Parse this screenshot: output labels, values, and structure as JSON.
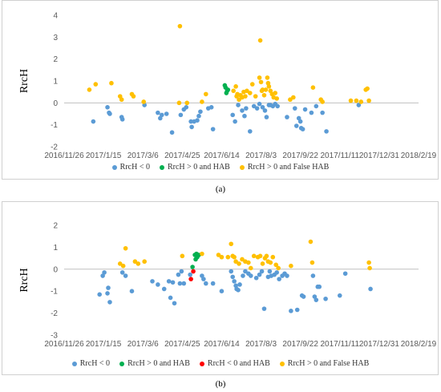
{
  "subfigure_labels": [
    "(a)",
    "(b)"
  ],
  "colors": {
    "rrch_neg": "#5b9bd5",
    "rrch_pos_hab": "#00b050",
    "rrch_neg_hab": "#ff0000",
    "rrch_pos_false_hab": "#ffc000",
    "axis": "#bfbfbf"
  },
  "chart_data": [
    {
      "type": "scatter",
      "subfigure": "(a)",
      "xlabel": "",
      "ylabel": "RrcH",
      "ylim": [
        -2,
        4
      ],
      "yticks": [
        -2,
        -1,
        0,
        1,
        2,
        3,
        4
      ],
      "x_tick_labels": [
        "2016/11/26",
        "2017/1/15",
        "2017/3/6",
        "2017/4/25",
        "2017/6/14",
        "2017/8/3",
        "2017/9/22",
        "2017/11/11",
        "2017/12/31",
        "2018/2/19"
      ],
      "xlim": [
        "2016/11/26",
        "2018/2/19"
      ],
      "grid": false,
      "legend_position": "bottom",
      "series": [
        {
          "name": "RrcH < 0",
          "color_key": "rrch_neg",
          "points": [
            [
              "2017-01-02",
              -0.85
            ],
            [
              "2017-01-20",
              -0.2
            ],
            [
              "2017-01-22",
              -0.45
            ],
            [
              "2017-01-23",
              -0.5
            ],
            [
              "2017-02-07",
              -0.65
            ],
            [
              "2017-02-08",
              -0.75
            ],
            [
              "2017-03-08",
              -0.1
            ],
            [
              "2017-03-25",
              -0.45
            ],
            [
              "2017-03-28",
              -0.7
            ],
            [
              "2017-03-30",
              -0.55
            ],
            [
              "2017-04-05",
              -0.5
            ],
            [
              "2017-04-12",
              -1.35
            ],
            [
              "2017-04-23",
              -0.55
            ],
            [
              "2017-04-27",
              -0.3
            ],
            [
              "2017-04-30",
              -0.2
            ],
            [
              "2017-05-06",
              -0.85
            ],
            [
              "2017-05-07",
              -1.1
            ],
            [
              "2017-05-10",
              -0.85
            ],
            [
              "2017-05-14",
              -0.8
            ],
            [
              "2017-05-16",
              -0.6
            ],
            [
              "2017-05-18",
              -0.4
            ],
            [
              "2017-05-28",
              -0.25
            ],
            [
              "2017-06-01",
              -0.2
            ],
            [
              "2017-06-03",
              -1.2
            ],
            [
              "2017-06-28",
              -0.55
            ],
            [
              "2017-07-01",
              -0.85
            ],
            [
              "2017-07-05",
              -0.1
            ],
            [
              "2017-07-10",
              -0.35
            ],
            [
              "2017-07-13",
              -0.6
            ],
            [
              "2017-07-15",
              -0.25
            ],
            [
              "2017-07-20",
              -1.3
            ],
            [
              "2017-07-25",
              -0.15
            ],
            [
              "2017-07-29",
              -0.25
            ],
            [
              "2017-08-01",
              -0.05
            ],
            [
              "2017-08-05",
              -0.2
            ],
            [
              "2017-08-08",
              -0.35
            ],
            [
              "2017-08-10",
              -0.65
            ],
            [
              "2017-08-13",
              -0.1
            ],
            [
              "2017-08-15",
              -0.1
            ],
            [
              "2017-08-18",
              -0.15
            ],
            [
              "2017-08-21",
              -0.05
            ],
            [
              "2017-08-24",
              -0.15
            ],
            [
              "2017-09-05",
              -0.65
            ],
            [
              "2017-09-15",
              -0.25
            ],
            [
              "2017-09-17",
              -1.05
            ],
            [
              "2017-09-20",
              -0.7
            ],
            [
              "2017-09-22",
              -0.85
            ],
            [
              "2017-09-23",
              -1.15
            ],
            [
              "2017-09-25",
              -1.2
            ],
            [
              "2017-09-28",
              -0.3
            ],
            [
              "2017-10-06",
              -0.45
            ],
            [
              "2017-10-12",
              -0.15
            ],
            [
              "2017-10-20",
              -0.45
            ],
            [
              "2017-10-25",
              -1.3
            ],
            [
              "2017-12-05",
              -0.1
            ]
          ]
        },
        {
          "name": "RrcH > 0 and HAB",
          "color_key": "rrch_pos_hab",
          "points": [
            [
              "2017-06-18",
              0.8
            ],
            [
              "2017-06-19",
              0.7
            ],
            [
              "2017-06-20",
              0.45
            ],
            [
              "2017-06-21",
              0.55
            ],
            [
              "2017-06-22",
              0.6
            ]
          ]
        },
        {
          "name": "RrcH > 0 and False HAB",
          "color_key": "rrch_pos_false_hab",
          "points": [
            [
              "2016-12-28",
              0.6
            ],
            [
              "2017-01-05",
              0.85
            ],
            [
              "2017-01-25",
              0.9
            ],
            [
              "2017-02-05",
              0.3
            ],
            [
              "2017-02-07",
              0.15
            ],
            [
              "2017-02-20",
              0.4
            ],
            [
              "2017-02-22",
              0.3
            ],
            [
              "2017-03-07",
              0.05
            ],
            [
              "2017-04-22",
              3.5
            ],
            [
              "2017-04-21",
              0.0
            ],
            [
              "2017-05-01",
              0.0
            ],
            [
              "2017-05-20",
              0.05
            ],
            [
              "2017-05-25",
              0.4
            ],
            [
              "2017-06-29",
              0.55
            ],
            [
              "2017-07-02",
              0.75
            ],
            [
              "2017-07-03",
              0.3
            ],
            [
              "2017-07-04",
              0.4
            ],
            [
              "2017-07-06",
              0.15
            ],
            [
              "2017-07-08",
              0.35
            ],
            [
              "2017-07-10",
              0.25
            ],
            [
              "2017-07-12",
              0.5
            ],
            [
              "2017-07-14",
              0.3
            ],
            [
              "2017-07-16",
              0.55
            ],
            [
              "2017-07-20",
              0.45
            ],
            [
              "2017-07-23",
              0.85
            ],
            [
              "2017-07-27",
              0.3
            ],
            [
              "2017-08-01",
              1.15
            ],
            [
              "2017-08-02",
              2.85
            ],
            [
              "2017-08-03",
              0.95
            ],
            [
              "2017-08-04",
              0.55
            ],
            [
              "2017-08-05",
              0.6
            ],
            [
              "2017-08-07",
              0.35
            ],
            [
              "2017-08-09",
              0.6
            ],
            [
              "2017-08-11",
              1.15
            ],
            [
              "2017-08-12",
              0.9
            ],
            [
              "2017-08-13",
              0.75
            ],
            [
              "2017-08-15",
              0.55
            ],
            [
              "2017-08-17",
              0.4
            ],
            [
              "2017-08-19",
              0.25
            ],
            [
              "2017-08-21",
              0.45
            ],
            [
              "2017-08-23",
              0.2
            ],
            [
              "2017-09-09",
              0.15
            ],
            [
              "2017-09-13",
              0.25
            ],
            [
              "2017-10-08",
              0.7
            ],
            [
              "2017-10-18",
              0.15
            ],
            [
              "2017-10-20",
              0.05
            ],
            [
              "2017-11-25",
              0.1
            ],
            [
              "2017-12-02",
              0.1
            ],
            [
              "2017-12-08",
              0.05
            ],
            [
              "2017-12-14",
              0.6
            ],
            [
              "2017-12-16",
              0.65
            ],
            [
              "2017-12-18",
              0.1
            ]
          ]
        }
      ]
    },
    {
      "type": "scatter",
      "subfigure": "(b)",
      "xlabel": "",
      "ylabel": "RrcH",
      "ylim": [
        -3,
        2
      ],
      "yticks": [
        -3,
        -2,
        -1,
        0,
        1,
        2
      ],
      "x_tick_labels": [
        "2016/11/26",
        "2017/1/15",
        "2017/3/6",
        "2017/4/25",
        "2017/6/14",
        "2017/8/3",
        "2017/9/22",
        "2017/11/11",
        "2017/12/31",
        "2018/2/19"
      ],
      "xlim": [
        "2016/11/26",
        "2018/2/19"
      ],
      "grid": false,
      "legend_position": "bottom",
      "series": [
        {
          "name": "RrcH < 0",
          "color_key": "rrch_neg",
          "points": [
            [
              "2017-01-10",
              -1.15
            ],
            [
              "2017-01-14",
              -0.3
            ],
            [
              "2017-01-16",
              -0.15
            ],
            [
              "2017-01-20",
              -1.1
            ],
            [
              "2017-01-21",
              -0.85
            ],
            [
              "2017-01-23",
              -1.5
            ],
            [
              "2017-02-08",
              -0.15
            ],
            [
              "2017-02-12",
              -0.3
            ],
            [
              "2017-02-20",
              -1.0
            ],
            [
              "2017-03-18",
              -0.55
            ],
            [
              "2017-03-25",
              -0.7
            ],
            [
              "2017-04-02",
              -0.9
            ],
            [
              "2017-04-08",
              -0.55
            ],
            [
              "2017-04-10",
              -1.3
            ],
            [
              "2017-04-13",
              -0.6
            ],
            [
              "2017-04-15",
              -1.55
            ],
            [
              "2017-04-20",
              -0.25
            ],
            [
              "2017-04-22",
              -0.65
            ],
            [
              "2017-04-24",
              -0.1
            ],
            [
              "2017-04-27",
              -0.65
            ],
            [
              "2017-05-05",
              -0.25
            ],
            [
              "2017-05-20",
              -0.3
            ],
            [
              "2017-05-22",
              -0.45
            ],
            [
              "2017-05-25",
              -0.65
            ],
            [
              "2017-06-03",
              -0.65
            ],
            [
              "2017-06-14",
              -1.0
            ],
            [
              "2017-06-26",
              -0.1
            ],
            [
              "2017-06-28",
              -0.35
            ],
            [
              "2017-06-30",
              -0.55
            ],
            [
              "2017-07-02",
              -0.75
            ],
            [
              "2017-07-03",
              -0.9
            ],
            [
              "2017-07-05",
              -0.95
            ],
            [
              "2017-07-07",
              -0.7
            ],
            [
              "2017-07-11",
              -0.3
            ],
            [
              "2017-07-14",
              -0.1
            ],
            [
              "2017-07-18",
              -0.2
            ],
            [
              "2017-07-21",
              -0.3
            ],
            [
              "2017-07-28",
              -0.4
            ],
            [
              "2017-08-01",
              -0.25
            ],
            [
              "2017-08-04",
              -0.1
            ],
            [
              "2017-08-07",
              -1.8
            ],
            [
              "2017-08-12",
              -0.35
            ],
            [
              "2017-08-14",
              -0.1
            ],
            [
              "2017-08-16",
              -0.3
            ],
            [
              "2017-08-20",
              -0.25
            ],
            [
              "2017-08-23",
              -0.15
            ],
            [
              "2017-08-26",
              -0.45
            ],
            [
              "2017-08-30",
              -0.3
            ],
            [
              "2017-09-02",
              -0.2
            ],
            [
              "2017-09-05",
              -0.3
            ],
            [
              "2017-09-10",
              -1.9
            ],
            [
              "2017-09-18",
              -1.85
            ],
            [
              "2017-09-24",
              -1.2
            ],
            [
              "2017-09-26",
              -1.25
            ],
            [
              "2017-10-08",
              -0.3
            ],
            [
              "2017-10-10",
              -1.25
            ],
            [
              "2017-10-12",
              -1.4
            ],
            [
              "2017-10-14",
              -0.8
            ],
            [
              "2017-10-16",
              -0.8
            ],
            [
              "2017-10-24",
              -1.35
            ],
            [
              "2017-11-11",
              -1.2
            ],
            [
              "2017-11-18",
              -0.2
            ],
            [
              "2017-12-20",
              -0.9
            ]
          ]
        },
        {
          "name": "RrcH > 0 and HAB",
          "color_key": "rrch_pos_hab",
          "points": [
            [
              "2017-05-08",
              0.1
            ],
            [
              "2017-05-11",
              0.65
            ],
            [
              "2017-05-12",
              0.45
            ],
            [
              "2017-05-13",
              0.7
            ],
            [
              "2017-05-14",
              0.55
            ],
            [
              "2017-05-15",
              0.65
            ],
            [
              "2017-05-16",
              0.65
            ]
          ]
        },
        {
          "name": "RrcH < 0 and HAB",
          "color_key": "rrch_neg_hab",
          "points": [
            [
              "2017-05-06",
              -0.45
            ],
            [
              "2017-05-09",
              -0.1
            ]
          ]
        },
        {
          "name": "RrcH > 0 and False HAB",
          "color_key": "rrch_pos_false_hab",
          "points": [
            [
              "2017-02-05",
              0.25
            ],
            [
              "2017-02-09",
              0.15
            ],
            [
              "2017-02-12",
              0.95
            ],
            [
              "2017-02-24",
              0.35
            ],
            [
              "2017-02-28",
              0.25
            ],
            [
              "2017-03-08",
              0.35
            ],
            [
              "2017-04-25",
              0.6
            ],
            [
              "2017-05-20",
              0.7
            ],
            [
              "2017-06-10",
              0.65
            ],
            [
              "2017-06-14",
              0.55
            ],
            [
              "2017-06-22",
              0.55
            ],
            [
              "2017-06-26",
              1.15
            ],
            [
              "2017-06-28",
              0.6
            ],
            [
              "2017-06-30",
              0.55
            ],
            [
              "2017-07-02",
              0.35
            ],
            [
              "2017-07-06",
              0.25
            ],
            [
              "2017-07-10",
              0.45
            ],
            [
              "2017-07-14",
              0.35
            ],
            [
              "2017-07-18",
              0.3
            ],
            [
              "2017-07-21",
              0.05
            ],
            [
              "2017-07-25",
              0.6
            ],
            [
              "2017-07-30",
              0.55
            ],
            [
              "2017-08-02",
              0.6
            ],
            [
              "2017-08-05",
              0.25
            ],
            [
              "2017-08-08",
              0.5
            ],
            [
              "2017-08-10",
              0.6
            ],
            [
              "2017-08-12",
              0.35
            ],
            [
              "2017-08-15",
              0.3
            ],
            [
              "2017-08-18",
              0.55
            ],
            [
              "2017-08-22",
              0.2
            ],
            [
              "2017-08-25",
              0.05
            ],
            [
              "2017-09-10",
              0.15
            ],
            [
              "2017-10-05",
              1.25
            ],
            [
              "2017-10-07",
              0.3
            ],
            [
              "2017-12-18",
              0.3
            ],
            [
              "2017-12-19",
              0.05
            ]
          ]
        }
      ]
    }
  ]
}
